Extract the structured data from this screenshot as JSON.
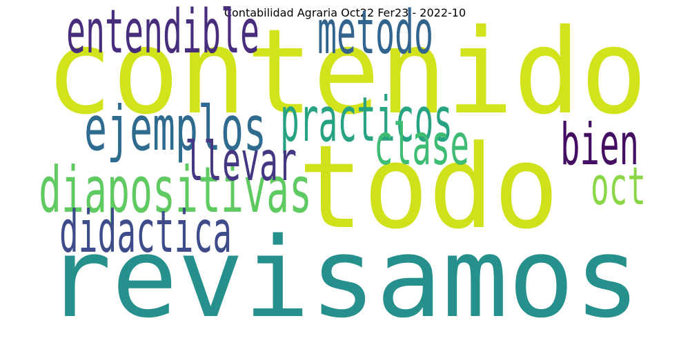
{
  "chart_data": {
    "type": "wordcloud",
    "title": "Contabilidad Agraria Oct22 Fer23 - 2022-10",
    "words": [
      {
        "text": "contenido",
        "weight": 1.0,
        "color": "#d2e21b"
      },
      {
        "text": "todo",
        "weight": 0.98,
        "color": "#d0e11c"
      },
      {
        "text": "revisamos",
        "weight": 0.92,
        "color": "#25908c"
      },
      {
        "text": "diapositivas",
        "weight": 0.4,
        "color": "#5fca61"
      },
      {
        "text": "ejemplos",
        "weight": 0.38,
        "color": "#2f6b8e"
      },
      {
        "text": "practicos",
        "weight": 0.38,
        "color": "#27a282"
      },
      {
        "text": "entendible",
        "weight": 0.36,
        "color": "#472d7b"
      },
      {
        "text": "metodo",
        "weight": 0.36,
        "color": "#32648e"
      },
      {
        "text": "didactica",
        "weight": 0.34,
        "color": "#3e4c8a"
      },
      {
        "text": "bien",
        "weight": 0.33,
        "color": "#440f63"
      },
      {
        "text": "clase",
        "weight": 0.32,
        "color": "#3ebc74"
      },
      {
        "text": "llevar",
        "weight": 0.29,
        "color": "#453781"
      },
      {
        "text": "oct",
        "weight": 0.28,
        "color": "#8bd646"
      }
    ]
  }
}
